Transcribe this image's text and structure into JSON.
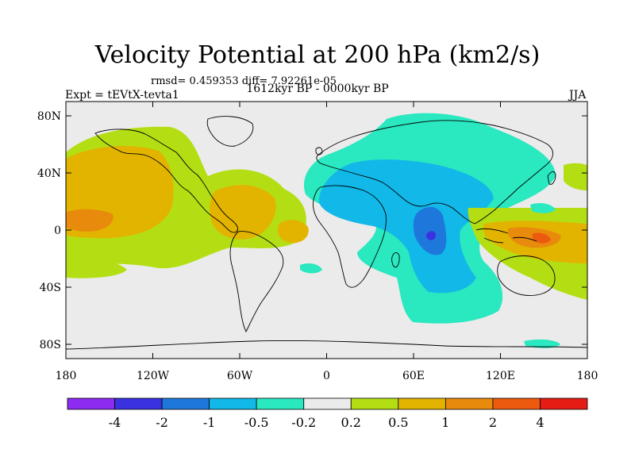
{
  "title": "Velocity Potential at 200 hPa (km2/s)",
  "stats": "rmsd= 0.459353 diff= 7.92261e-05",
  "experiment": "Expt = tEVtX-tevta1",
  "period": "1612kyr BP - 0000kyr BP",
  "season": "JJA",
  "map": {
    "lon_range": [
      -180,
      180
    ],
    "lat_range": [
      -90,
      90
    ],
    "lon_ticks": [
      {
        "value": -180,
        "label": "180"
      },
      {
        "value": -120,
        "label": "120W"
      },
      {
        "value": -60,
        "label": "60W"
      },
      {
        "value": 0,
        "label": "0"
      },
      {
        "value": 60,
        "label": "60E"
      },
      {
        "value": 120,
        "label": "120E"
      },
      {
        "value": 180,
        "label": "180"
      }
    ],
    "lat_ticks": [
      {
        "value": 80,
        "label": "80N"
      },
      {
        "value": 40,
        "label": "40N"
      },
      {
        "value": 0,
        "label": "0"
      },
      {
        "value": -40,
        "label": "40S"
      },
      {
        "value": -80,
        "label": "80S"
      }
    ],
    "background_color": "#ebebeb"
  },
  "colorbar": {
    "colors": [
      "#8e2bf0",
      "#3a32e0",
      "#1e78dc",
      "#12b8e8",
      "#2ae8c0",
      "#ebebeb",
      "#b4de14",
      "#e2b400",
      "#e88a0c",
      "#ec5a10",
      "#e41c14"
    ],
    "labels": [
      "-4",
      "-2",
      "-1",
      "-0.5",
      "-0.2",
      "0.2",
      "0.5",
      "1",
      "2",
      "4"
    ]
  }
}
